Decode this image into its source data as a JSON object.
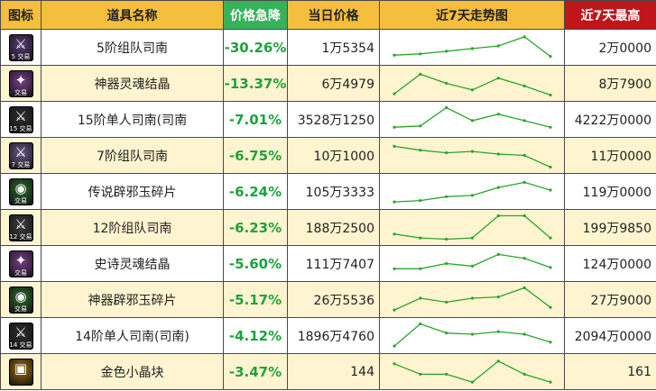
{
  "headers": {
    "icon": "图标",
    "name": "道具名称",
    "drop": "价格急降",
    "price": "当日价格",
    "trend": "近7天走势图",
    "max": "近7天最高"
  },
  "colors": {
    "header_bg": "#f5be3c",
    "header_drop_bg": "#37b25a",
    "header_max_bg": "#c0161b",
    "drop_text": "#1fa23d",
    "spark_line": "#2aa52a",
    "row_alt_bg": "#fff4d0"
  },
  "rows": [
    {
      "icon": "weapon-icon",
      "icon_color": "#5b3c7c",
      "glyph": "⚔",
      "tag": "5 交易",
      "name": "5阶组队司南",
      "drop": "-30.26%",
      "price": "1万5354",
      "max": "2万0000",
      "trend": [
        0.2,
        0.25,
        0.35,
        0.45,
        0.55,
        0.9,
        0.15
      ]
    },
    {
      "icon": "soul-crystal-icon",
      "icon_color": "#7a3f8e",
      "glyph": "✦",
      "tag": "交易",
      "name": "神器灵魂结晶",
      "drop": "-13.37%",
      "price": "6万4979",
      "max": "8万7900",
      "trend": [
        0.1,
        0.85,
        0.5,
        0.25,
        0.7,
        0.4,
        0.05
      ]
    },
    {
      "icon": "weapon-icon",
      "icon_color": "#2e2e2e",
      "glyph": "⚔",
      "tag": "15 交易",
      "name": "15阶单人司南(司南",
      "drop": "-7.01%",
      "price": "3528万1250",
      "max": "4222万0000",
      "trend": [
        0.2,
        0.25,
        0.95,
        0.45,
        0.7,
        0.45,
        0.2
      ]
    },
    {
      "icon": "weapon-icon",
      "icon_color": "#6b5a8c",
      "glyph": "⚔",
      "tag": "7 交易",
      "name": "7阶组队司南",
      "drop": "-6.75%",
      "price": "10万1000",
      "max": "11万0000",
      "trend": [
        0.85,
        0.7,
        0.6,
        0.65,
        0.55,
        0.5,
        0.05
      ]
    },
    {
      "icon": "jade-shard-icon",
      "icon_color": "#2c6b2c",
      "glyph": "◉",
      "tag": "交易",
      "name": "传说辟邪玉碎片",
      "drop": "-6.24%",
      "price": "105万3333",
      "max": "119万0000",
      "trend": [
        0.1,
        0.15,
        0.3,
        0.35,
        0.65,
        0.85,
        0.55
      ]
    },
    {
      "icon": "weapon-icon",
      "icon_color": "#3e3e3e",
      "glyph": "⚔",
      "tag": "12 交易",
      "name": "12阶组队司南",
      "drop": "-6.23%",
      "price": "188万2500",
      "max": "199万9850",
      "trend": [
        0.25,
        0.1,
        0.05,
        0.1,
        0.95,
        0.95,
        0.1
      ]
    },
    {
      "icon": "soul-crystal-icon",
      "icon_color": "#7a3f8e",
      "glyph": "✦",
      "tag": "交易",
      "name": "史诗灵魂结晶",
      "drop": "-5.60%",
      "price": "111万7407",
      "max": "124万0000",
      "trend": [
        0.3,
        0.3,
        0.5,
        0.4,
        0.85,
        0.7,
        0.35
      ]
    },
    {
      "icon": "jade-shard-icon",
      "icon_color": "#2c6b2c",
      "glyph": "◉",
      "tag": "交易",
      "name": "神器辟邪玉碎片",
      "drop": "-5.17%",
      "price": "26万5536",
      "max": "27万9000",
      "trend": [
        0.1,
        0.55,
        0.4,
        0.55,
        0.6,
        0.95,
        0.2
      ]
    },
    {
      "icon": "weapon-icon",
      "icon_color": "#2e2e2e",
      "glyph": "⚔",
      "tag": "14 交易",
      "name": "14阶单人司南(司南)",
      "drop": "-4.12%",
      "price": "1896万4760",
      "max": "2094万0000",
      "trend": [
        0.1,
        0.95,
        0.6,
        0.55,
        0.65,
        0.55,
        0.25
      ]
    },
    {
      "icon": "gold-crystal-icon",
      "icon_color": "#a06e10",
      "glyph": "▣",
      "tag": "",
      "name": "金色小晶块",
      "drop": "-3.47%",
      "price": "144",
      "max": "161",
      "trend": [
        0.8,
        0.4,
        0.4,
        0.1,
        0.9,
        0.4,
        0.1
      ]
    }
  ]
}
